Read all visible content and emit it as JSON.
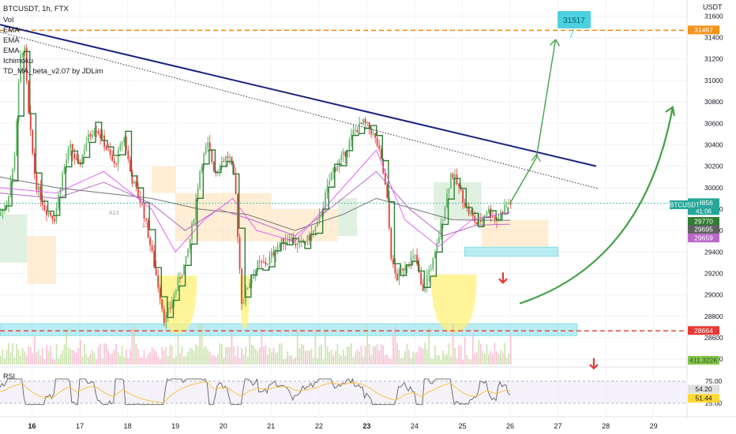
{
  "header": {
    "symbol_line": "BTCUSDT, 1h, FTX",
    "indicators": [
      "Vol",
      "EMA",
      "EMA",
      "EMA",
      "Ichimoku",
      "TD_MA_beta_v2.07 by JDLim"
    ]
  },
  "price_axis": {
    "currency": "USDT",
    "ticks": [
      31600,
      31400,
      31200,
      31000,
      30800,
      30600,
      30400,
      30200,
      30000,
      29800,
      29600,
      29400,
      29200,
      29000,
      28800,
      28600,
      28400
    ]
  },
  "badges": [
    {
      "name": "target-level",
      "text": "31467",
      "value": 31467,
      "color": "#f7931a"
    },
    {
      "name": "last-price",
      "text": "29856",
      "value": 29856,
      "color": "#26a69a"
    },
    {
      "name": "ema-1",
      "text": "29770",
      "value": 29770,
      "color": "#2e7d32"
    },
    {
      "name": "ema-2",
      "text": "29695",
      "value": 29695,
      "color": "#616161"
    },
    {
      "name": "ema-3",
      "text": "29659",
      "value": 29659,
      "color": "#ba68c8"
    },
    {
      "name": "support-level",
      "text": "28664",
      "value": 28664,
      "color": "#e53935"
    },
    {
      "name": "volume",
      "text": "411.322K",
      "value": 411.322,
      "color": "#8bc34a"
    }
  ],
  "symbol_badge": {
    "text": "BTCUSDT",
    "countdown": "41:06",
    "color": "#26a69a"
  },
  "target_box": {
    "text": "31517",
    "value": 31517,
    "color": "#4dd0e1"
  },
  "rsi": {
    "title": "RSI",
    "ticks": [
      75.0,
      25.0
    ],
    "tick_labels": [
      "75.00",
      "25.00"
    ],
    "badges": [
      {
        "text": "54.20",
        "value": 54.2
      },
      {
        "text": "51.44",
        "value": 51.44
      }
    ]
  },
  "x_axis": {
    "labels": [
      "16",
      "17",
      "18",
      "19",
      "20",
      "21",
      "22",
      "23",
      "24",
      "25",
      "26",
      "27",
      "28",
      "29"
    ]
  },
  "annotations": {
    "td_labels": [
      "A13",
      "13"
    ]
  },
  "chart_data": {
    "type": "candlestick",
    "ylim": [
      28350,
      31750
    ],
    "x_range": [
      15.33,
      29.7
    ],
    "support_zone": [
      28620,
      28730
    ],
    "resistance_zone": [
      29360,
      29445
    ],
    "dashed_levels": [
      31467,
      28664
    ],
    "trendline_main": {
      "from": [
        15.33,
        31520
      ],
      "to": [
        27.8,
        30200
      ]
    },
    "trendline_dotted": {
      "from": [
        15.33,
        31450
      ],
      "to": [
        27.85,
        29990
      ]
    },
    "price_path": [
      [
        15.33,
        29740
      ],
      [
        15.5,
        29860
      ],
      [
        15.65,
        30220
      ],
      [
        15.78,
        31200
      ],
      [
        15.86,
        31350
      ],
      [
        15.95,
        30700
      ],
      [
        16.1,
        30050
      ],
      [
        16.3,
        29800
      ],
      [
        16.5,
        29720
      ],
      [
        16.65,
        30100
      ],
      [
        16.82,
        30380
      ],
      [
        17.0,
        30180
      ],
      [
        17.15,
        30420
      ],
      [
        17.35,
        30580
      ],
      [
        17.55,
        30400
      ],
      [
        17.75,
        30200
      ],
      [
        17.95,
        30480
      ],
      [
        18.1,
        30100
      ],
      [
        18.35,
        29800
      ],
      [
        18.55,
        29350
      ],
      [
        18.7,
        29010
      ],
      [
        18.8,
        28750
      ],
      [
        18.95,
        28930
      ],
      [
        19.1,
        29150
      ],
      [
        19.25,
        29320
      ],
      [
        19.4,
        29700
      ],
      [
        19.55,
        30200
      ],
      [
        19.7,
        30400
      ],
      [
        19.85,
        30150
      ],
      [
        20.0,
        30250
      ],
      [
        20.15,
        30300
      ],
      [
        20.28,
        30000
      ],
      [
        20.35,
        29400
      ],
      [
        20.42,
        28900
      ],
      [
        20.55,
        29100
      ],
      [
        20.75,
        29280
      ],
      [
        20.95,
        29300
      ],
      [
        21.15,
        29450
      ],
      [
        21.4,
        29550
      ],
      [
        21.6,
        29450
      ],
      [
        21.8,
        29520
      ],
      [
        22.0,
        29650
      ],
      [
        22.15,
        29900
      ],
      [
        22.3,
        30150
      ],
      [
        22.55,
        30300
      ],
      [
        22.75,
        30520
      ],
      [
        22.95,
        30600
      ],
      [
        23.1,
        30550
      ],
      [
        23.25,
        30400
      ],
      [
        23.35,
        30200
      ],
      [
        23.45,
        29900
      ],
      [
        23.55,
        29300
      ],
      [
        23.65,
        29150
      ],
      [
        23.85,
        29300
      ],
      [
        24.05,
        29350
      ],
      [
        24.2,
        29000
      ],
      [
        24.3,
        29200
      ],
      [
        24.45,
        29350
      ],
      [
        24.6,
        29700
      ],
      [
        24.8,
        30150
      ],
      [
        24.95,
        30000
      ],
      [
        25.15,
        29780
      ],
      [
        25.35,
        29650
      ],
      [
        25.55,
        29800
      ],
      [
        25.75,
        29700
      ],
      [
        25.95,
        29850
      ],
      [
        26.0,
        29856
      ]
    ],
    "ema_fast": [
      [
        15.33,
        30000
      ],
      [
        16.5,
        29950
      ],
      [
        17.5,
        30150
      ],
      [
        18.5,
        29800
      ],
      [
        19.0,
        29400
      ],
      [
        19.6,
        29700
      ],
      [
        20.2,
        29900
      ],
      [
        20.7,
        29600
      ],
      [
        21.5,
        29500
      ],
      [
        22.5,
        30000
      ],
      [
        23.2,
        30350
      ],
      [
        23.8,
        29700
      ],
      [
        24.5,
        29450
      ],
      [
        25.2,
        29700
      ],
      [
        26.0,
        29770
      ]
    ],
    "ema_mid": [
      [
        15.33,
        29950
      ],
      [
        16.5,
        29900
      ],
      [
        17.5,
        30050
      ],
      [
        18.5,
        29850
      ],
      [
        19.2,
        29600
      ],
      [
        19.9,
        29800
      ],
      [
        20.6,
        29700
      ],
      [
        21.5,
        29550
      ],
      [
        22.5,
        29900
      ],
      [
        23.2,
        30150
      ],
      [
        23.9,
        29800
      ],
      [
        24.6,
        29550
      ],
      [
        25.3,
        29650
      ],
      [
        26.0,
        29659
      ]
    ],
    "ema_slow": [
      [
        15.33,
        30100
      ],
      [
        16.5,
        30000
      ],
      [
        17.5,
        29950
      ],
      [
        18.5,
        29900
      ],
      [
        19.5,
        29800
      ],
      [
        20.5,
        29750
      ],
      [
        21.5,
        29600
      ],
      [
        22.5,
        29750
      ],
      [
        23.2,
        29900
      ],
      [
        24.0,
        29800
      ],
      [
        24.8,
        29700
      ],
      [
        26.0,
        29695
      ]
    ],
    "cloud": [
      {
        "x0": 15.33,
        "x1": 15.9,
        "y0": 29300,
        "y1": 29750,
        "color": "#c8e6c9"
      },
      {
        "x0": 15.9,
        "x1": 16.5,
        "y0": 29100,
        "y1": 29550,
        "color": "#ffe0b2"
      },
      {
        "x0": 18.5,
        "x1": 19.0,
        "y0": 29950,
        "y1": 30200,
        "color": "#ffe0b2"
      },
      {
        "x0": 19.0,
        "x1": 21.0,
        "y0": 29500,
        "y1": 29950,
        "color": "#ffe0b2"
      },
      {
        "x0": 21.0,
        "x1": 22.4,
        "y0": 29500,
        "y1": 29800,
        "color": "#ffe0b2"
      },
      {
        "x0": 22.4,
        "x1": 22.8,
        "y0": 29550,
        "y1": 29900,
        "color": "#c8e6c9"
      },
      {
        "x0": 24.4,
        "x1": 25.4,
        "y0": 29700,
        "y1": 30050,
        "color": "#c8e6c9"
      },
      {
        "x0": 25.4,
        "x1": 26.8,
        "y0": 29450,
        "y1": 29700,
        "color": "#ffe0b2"
      }
    ],
    "highlight_bowls": [
      {
        "x0": 18.65,
        "x1": 19.45,
        "ytop": 29180,
        "ybottom": 28640
      },
      {
        "x0": 20.35,
        "x1": 20.55,
        "ytop": 29180,
        "ybottom": 28680
      },
      {
        "x0": 24.35,
        "x1": 25.3,
        "ytop": 29190,
        "ybottom": 28650
      }
    ],
    "projection_main": [
      [
        26.0,
        29856
      ],
      [
        26.55,
        30280
      ],
      [
        26.95,
        31380
      ]
    ],
    "projection_curve": {
      "from": [
        26.2,
        28920
      ],
      "ctrl": [
        28.8,
        29300
      ],
      "to": [
        29.4,
        30750
      ]
    },
    "down_arrows": [
      {
        "x": 25.85,
        "y": 29150
      },
      {
        "x": 27.75,
        "y": 28350
      }
    ],
    "rsi_series_x": [
      15.33,
      26.0
    ],
    "rsi_levels": [
      75,
      25
    ]
  }
}
